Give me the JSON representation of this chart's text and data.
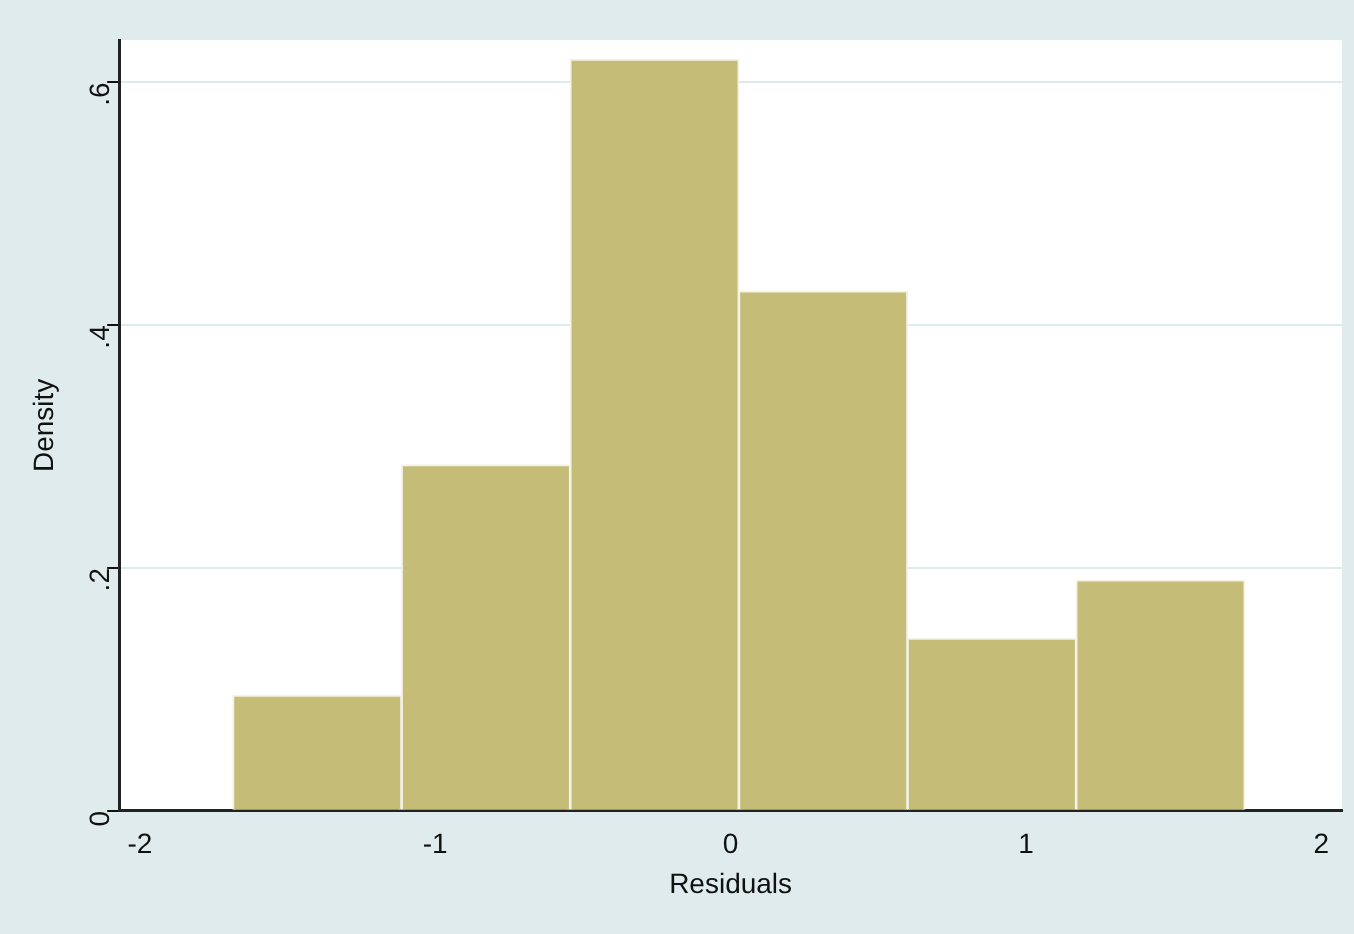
{
  "chart_data": {
    "type": "histogram",
    "xlabel": "Residuals",
    "ylabel": "Density",
    "bins": [
      -1.685,
      -1.114,
      -0.543,
      0.028,
      0.599,
      1.17,
      1.741
    ],
    "values": [
      0.095,
      0.285,
      0.619,
      0.428,
      0.142,
      0.19
    ],
    "color": "#c5bc78",
    "xlim": [
      -2.07,
      2.07
    ],
    "xticks": [
      -2,
      -1,
      0,
      1,
      2
    ],
    "ylim": [
      0,
      0.635
    ],
    "yticks": [
      0,
      {
        "value": 0.2,
        "label": ".2"
      },
      {
        "value": 0.4,
        "label": ".4"
      },
      {
        "value": 0.6,
        "label": ".6"
      }
    ],
    "grid": "y"
  }
}
